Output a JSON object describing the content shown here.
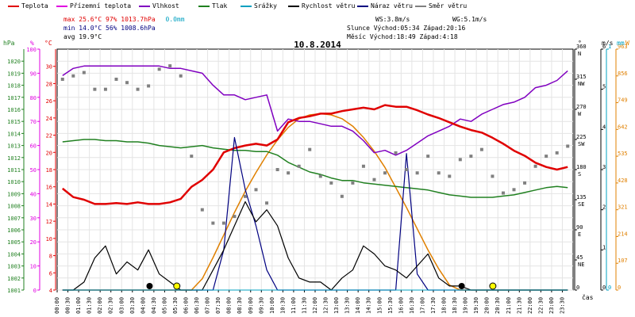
{
  "legend": [
    {
      "key": "teplota",
      "label": "Teplota",
      "color": "#e00000"
    },
    {
      "key": "pocitova",
      "label": "Přízemní teplota",
      "color": "#e000e0"
    },
    {
      "key": "vlhkost",
      "label": "Vlhkost",
      "color": "#8000c0"
    },
    {
      "key": "tlak",
      "label": "Tlak",
      "color": "#208020"
    },
    {
      "key": "srazky",
      "label": "Srážky",
      "color": "#00a0c0"
    },
    {
      "key": "rychlost",
      "label": "Rychlost větru",
      "color": "#000000"
    },
    {
      "key": "naraz",
      "label": "Náraz větru",
      "color": "#000080"
    },
    {
      "key": "smer",
      "label": "Směr větru",
      "color": "#808080"
    }
  ],
  "stats": {
    "max_label": "max",
    "max_temp": "25.6°C",
    "max_hum": "97%",
    "max_press": "1013.7hPa",
    "max_rain": "0.0mm",
    "min_label": "min",
    "min_temp": "14.0°C",
    "min_hum": "56%",
    "min_press": "1008.6hPa",
    "avg_label": "avg",
    "avg_temp": "19.9°C"
  },
  "info": {
    "ws": "WS:3.8m/s",
    "wg": "WG:5.1m/s",
    "slunce": "Slunce Východ:05:34  Západ:20:16",
    "mesic": "Měsíc  Východ:18:49  Západ:4:18"
  },
  "title": "10.8.2014",
  "units": {
    "hpa": "hPa",
    "pct": "%",
    "degc": "°C",
    "deg": "°",
    "ms": "m/s",
    "mm": "mm",
    "w": "W",
    "cas": "čas"
  },
  "colors": {
    "temp": "#e00000",
    "feels": "#e000e0",
    "hum": "#8000c0",
    "press": "#208020",
    "rain": "#00a0c0",
    "wind": "#000000",
    "gust": "#000080",
    "dir": "#808080",
    "solar": "#e08000"
  },
  "chart_data": {
    "type": "line",
    "title": "10.8.2014",
    "x": [
      "00:00",
      "00:30",
      "01:00",
      "01:30",
      "02:00",
      "02:30",
      "03:00",
      "03:30",
      "04:00",
      "04:30",
      "05:00",
      "05:30",
      "06:00",
      "06:30",
      "07:00",
      "07:30",
      "08:00",
      "08:30",
      "09:00",
      "09:30",
      "10:00",
      "10:30",
      "11:00",
      "11:30",
      "12:00",
      "12:30",
      "13:00",
      "13:30",
      "14:00",
      "14:30",
      "15:00",
      "15:30",
      "16:00",
      "16:30",
      "17:00",
      "17:30",
      "18:00",
      "18:30",
      "19:00",
      "19:30",
      "20:00",
      "20:30",
      "21:00",
      "21:30",
      "22:00",
      "22:30",
      "23:00",
      "23:30"
    ],
    "xlabel": "čas",
    "axes": {
      "pressure_hpa": {
        "ticks": [
          1001,
          1002,
          1003,
          1004,
          1005,
          1006,
          1007,
          1008,
          1009,
          1010,
          1011,
          1012,
          1013,
          1014,
          1015,
          1016,
          1017,
          1018,
          1019,
          1020
        ],
        "range": [
          1001,
          1021
        ]
      },
      "humidity_pct": {
        "ticks": [
          0,
          10,
          20,
          30,
          40,
          50,
          60,
          70,
          80,
          90,
          100
        ],
        "range": [
          0,
          100
        ]
      },
      "temperature_c": {
        "ticks": [
          4,
          6,
          8,
          10,
          12,
          14,
          16,
          18,
          20,
          22,
          24,
          26,
          28,
          30
        ],
        "range": [
          4,
          32
        ]
      },
      "direction_deg": {
        "ticks": [
          0,
          45,
          90,
          135,
          180,
          225,
          270,
          315,
          360
        ],
        "labels": [
          "0",
          "45 NE",
          "90 E",
          "135 SE",
          "180 S",
          "225 SW",
          "270 W",
          "315 NW",
          "360 N"
        ],
        "range": [
          0,
          360
        ]
      },
      "wind_ms": {
        "ticks": [
          0,
          1,
          2,
          3,
          4,
          5,
          6
        ],
        "range": [
          0,
          6
        ]
      },
      "rain_mm": {
        "ticks": [
          0,
          1
        ],
        "range": [
          0,
          1
        ]
      },
      "solar_w": {
        "ticks": [
          0,
          107,
          214,
          321,
          428,
          535,
          642,
          749,
          856,
          963
        ],
        "range": [
          0,
          963
        ]
      }
    },
    "series": [
      {
        "name": "Teplota",
        "axis": "temperature_c",
        "values": [
          15.8,
          14.8,
          14.5,
          14.0,
          14.0,
          14.1,
          14.0,
          14.2,
          14.0,
          14.0,
          14.2,
          14.6,
          16.0,
          16.8,
          18.0,
          20.0,
          20.5,
          20.8,
          21.0,
          20.8,
          21.5,
          23.5,
          24.0,
          24.2,
          24.5,
          24.5,
          24.8,
          25.0,
          25.2,
          25.0,
          25.5,
          25.3,
          25.3,
          24.9,
          24.4,
          24.0,
          23.5,
          23.0,
          22.6,
          22.3,
          21.7,
          21.0,
          20.2,
          19.6,
          18.8,
          18.3,
          18.0,
          18.3
        ]
      },
      {
        "name": "Vlhkost",
        "axis": "humidity_pct",
        "values": [
          89,
          92,
          93,
          93,
          93,
          93,
          93,
          93,
          93,
          93,
          92,
          92,
          91,
          90,
          85,
          81,
          81,
          79,
          80,
          81,
          66,
          71,
          70,
          70,
          69,
          68,
          68,
          66,
          62,
          57,
          58,
          56,
          58,
          61,
          64,
          66,
          68,
          71,
          70,
          73,
          75,
          77,
          78,
          80,
          84,
          85,
          87,
          91
        ]
      },
      {
        "name": "Tlak",
        "axis": "pressure_hpa",
        "values": [
          1013.3,
          1013.4,
          1013.5,
          1013.5,
          1013.4,
          1013.4,
          1013.3,
          1013.3,
          1013.2,
          1013.0,
          1012.9,
          1012.8,
          1012.9,
          1013.0,
          1012.8,
          1012.7,
          1012.6,
          1012.6,
          1012.5,
          1012.5,
          1012.2,
          1011.6,
          1011.2,
          1010.8,
          1010.6,
          1010.3,
          1010.1,
          1010.1,
          1009.9,
          1009.8,
          1009.7,
          1009.6,
          1009.5,
          1009.4,
          1009.3,
          1009.1,
          1008.9,
          1008.8,
          1008.7,
          1008.7,
          1008.7,
          1008.8,
          1008.9,
          1009.1,
          1009.3,
          1009.5,
          1009.6,
          1009.5
        ]
      },
      {
        "name": "Rychlost větru",
        "axis": "wind_ms",
        "values": [
          0,
          0,
          0.2,
          0.8,
          1.1,
          0.4,
          0.7,
          0.5,
          1.0,
          0.4,
          0.2,
          0,
          0,
          0,
          0.5,
          1.0,
          1.6,
          2.2,
          1.7,
          2.0,
          1.6,
          0.8,
          0.3,
          0.2,
          0.2,
          0,
          0.3,
          0.5,
          1.1,
          0.9,
          0.6,
          0.5,
          0.3,
          0.6,
          0.9,
          0.3,
          0.1,
          0.1,
          0,
          0,
          0,
          0,
          0,
          0,
          0,
          0,
          0,
          0
        ]
      },
      {
        "name": "Náraz větru",
        "axis": "wind_ms",
        "values": [
          0,
          0,
          0,
          0,
          0,
          0,
          0,
          0,
          0,
          0,
          0,
          0,
          0,
          0,
          0,
          1.0,
          3.8,
          2.5,
          1.6,
          0.5,
          0,
          0,
          0,
          0,
          0,
          0,
          0,
          0,
          0,
          0,
          0,
          0,
          3.4,
          0.4,
          0,
          0,
          0,
          0,
          0,
          0,
          0,
          0,
          0,
          0,
          0,
          0,
          0,
          0
        ]
      },
      {
        "name": "Srážky",
        "axis": "rain_mm",
        "values": [
          0,
          0,
          0,
          0,
          0,
          0,
          0,
          0,
          0,
          0,
          0,
          0,
          0,
          0,
          0,
          0,
          0,
          0,
          0,
          0,
          0,
          0,
          0,
          0,
          0,
          0,
          0,
          0,
          0,
          0,
          0,
          0,
          0,
          0,
          0,
          0,
          0,
          0,
          0,
          0,
          0,
          0,
          0,
          0,
          0,
          0,
          0,
          0
        ]
      },
      {
        "name": "Směr větru",
        "axis": "direction_deg",
        "type": "scatter",
        "values": [
          315,
          320,
          325,
          300,
          300,
          315,
          310,
          300,
          305,
          330,
          335,
          320,
          200,
          120,
          100,
          100,
          110,
          140,
          150,
          130,
          180,
          175,
          185,
          210,
          170,
          160,
          140,
          160,
          185,
          165,
          175,
          205,
          180,
          175,
          200,
          175,
          170,
          195,
          200,
          210,
          170,
          145,
          150,
          160,
          185,
          200,
          205,
          215
        ]
      },
      {
        "name": "Solar",
        "axis": "solar_w",
        "values": [
          0,
          0,
          0,
          0,
          0,
          0,
          0,
          0,
          0,
          0,
          0,
          0,
          0,
          45,
          130,
          220,
          310,
          395,
          470,
          540,
          600,
          650,
          685,
          700,
          705,
          700,
          685,
          655,
          610,
          555,
          490,
          410,
          330,
          245,
          160,
          85,
          20,
          0,
          0,
          0,
          0,
          0,
          0,
          0,
          0,
          0,
          0,
          0
        ]
      }
    ],
    "grid": true,
    "legend": "top"
  }
}
